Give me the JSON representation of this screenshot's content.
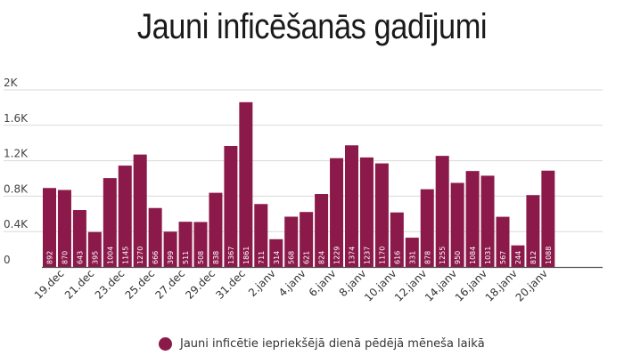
{
  "colors": {
    "bar": "#8b1a4a",
    "grid": "#d9d9d9",
    "axis": "#555555"
  },
  "chart_data": {
    "type": "bar",
    "title": "Jauni inficēšanās gadījumi",
    "yticks": [
      "0",
      "0.4K",
      "0.8K",
      "1.2K",
      "1.6K",
      "2K"
    ],
    "ylim": [
      0,
      2000
    ],
    "grid": true,
    "legend_position": "bottom-center",
    "xtick_labels": [
      "19.dec",
      "21.dec",
      "23.dec",
      "25.dec",
      "27.dec",
      "29.dec",
      "31.dec",
      "2.janv",
      "4.janv",
      "6.janv",
      "8.janv",
      "10.janv",
      "12.janv",
      "14.janv",
      "16.janv",
      "18.janv",
      "20.janv"
    ],
    "series": [
      {
        "name": "Jauni inficētie iepriekšējā dienā pēdējā mēneša laikā",
        "values": [
          892,
          870,
          643,
          395,
          1004,
          1145,
          1270,
          666,
          399,
          511,
          508,
          838,
          1367,
          1861,
          711,
          314,
          568,
          621,
          824,
          1229,
          1374,
          1237,
          1170,
          616,
          331,
          878,
          1255,
          950,
          1084,
          1031,
          567,
          244,
          812,
          1088
        ]
      }
    ]
  }
}
